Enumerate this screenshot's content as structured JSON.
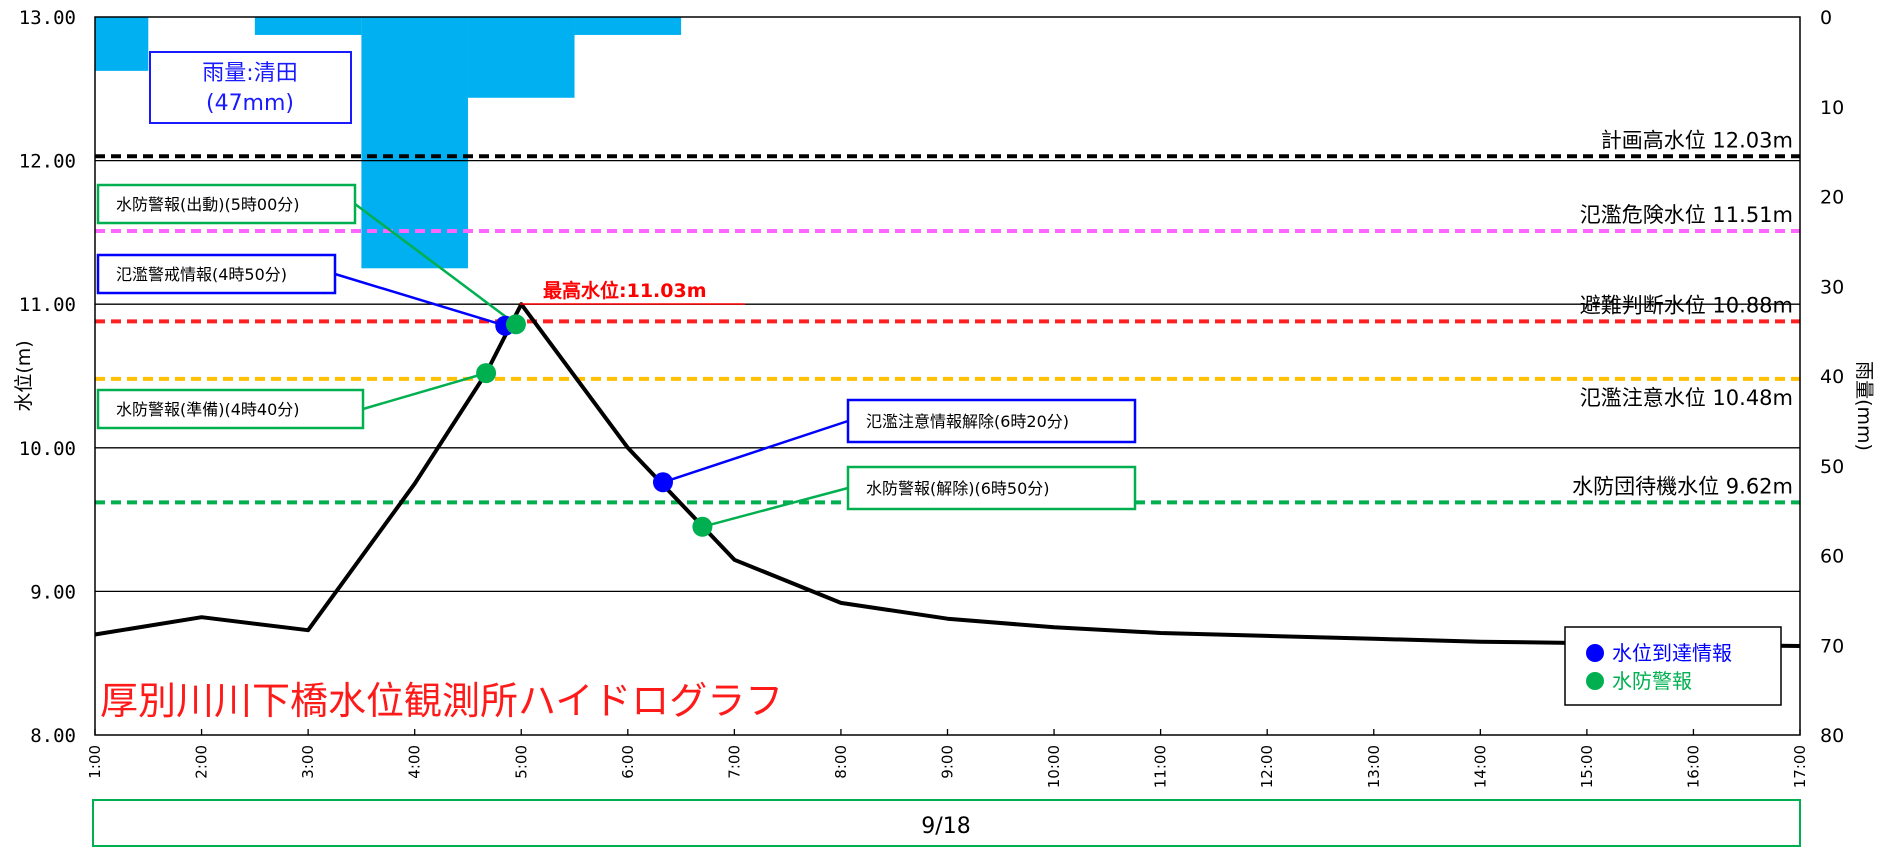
{
  "chart_data": {
    "type": "line",
    "title": "厚別川川下橋水位観測所ハイドログラフ",
    "ylabel_left": "水位(m)",
    "ylabel_right": "雨量(mm)",
    "ylim_left": [
      8.0,
      13.0
    ],
    "ylim_right": [
      0,
      80
    ],
    "yticks_left": [
      "8.00",
      "9.00",
      "10.00",
      "11.00",
      "12.00",
      "13.00"
    ],
    "yticks_right": [
      "0",
      "10",
      "20",
      "30",
      "40",
      "50",
      "60",
      "70",
      "80"
    ],
    "x_labels": [
      "1:00",
      "2:00",
      "3:00",
      "4:00",
      "5:00",
      "6:00",
      "7:00",
      "8:00",
      "9:00",
      "10:00",
      "11:00",
      "12:00",
      "13:00",
      "14:00",
      "15:00",
      "16:00",
      "17:00"
    ],
    "x_range": [
      1,
      17
    ],
    "date_label": "9/18",
    "water_level": [
      {
        "x": 1.0,
        "y": 8.7
      },
      {
        "x": 2.0,
        "y": 8.82
      },
      {
        "x": 3.0,
        "y": 8.73
      },
      {
        "x": 4.0,
        "y": 9.75
      },
      {
        "x": 4.67,
        "y": 10.52
      },
      {
        "x": 5.0,
        "y": 11.0
      },
      {
        "x": 6.0,
        "y": 10.0
      },
      {
        "x": 7.0,
        "y": 9.22
      },
      {
        "x": 8.0,
        "y": 8.92
      },
      {
        "x": 9.0,
        "y": 8.81
      },
      {
        "x": 10.0,
        "y": 8.75
      },
      {
        "x": 11.0,
        "y": 8.71
      },
      {
        "x": 12.0,
        "y": 8.69
      },
      {
        "x": 13.0,
        "y": 8.67
      },
      {
        "x": 14.0,
        "y": 8.65
      },
      {
        "x": 15.0,
        "y": 8.64
      },
      {
        "x": 16.0,
        "y": 8.63
      },
      {
        "x": 17.0,
        "y": 8.62
      }
    ],
    "rainfall": [
      {
        "x0": 1.0,
        "x1": 1.5,
        "mm": 6
      },
      {
        "x0": 2.5,
        "x1": 3.5,
        "mm": 2
      },
      {
        "x0": 3.5,
        "x1": 4.5,
        "mm": 28
      },
      {
        "x0": 4.5,
        "x1": 5.5,
        "mm": 9
      },
      {
        "x0": 5.5,
        "x1": 6.5,
        "mm": 2
      }
    ],
    "rain_label": [
      "雨量:清田",
      "(47mm)"
    ],
    "reference_levels": [
      {
        "label": "計画高水位 12.03m",
        "value": 12.03,
        "color": "#000000"
      },
      {
        "label": "氾濫危険水位 11.51m",
        "value": 11.51,
        "color": "#ff66ff"
      },
      {
        "label": "避難判断水位 10.88m",
        "value": 10.88,
        "color": "#ff2020"
      },
      {
        "label": "氾濫注意水位 10.48m",
        "value": 10.48,
        "color": "#ffc000"
      },
      {
        "label": "水防団待機水位 9.62m",
        "value": 9.62,
        "color": "#00b050"
      }
    ],
    "peak_label": "最高水位:11.03m",
    "peak": {
      "x": 5.0,
      "y": 11.03
    },
    "events": [
      {
        "label": "水防警報(出動)(5時00分)",
        "kind": "green",
        "x": 4.95,
        "y": 10.86
      },
      {
        "label": "氾濫警戒情報(4時50分)",
        "kind": "blue",
        "x": 4.85,
        "y": 10.85
      },
      {
        "label": "水防警報(準備)(4時40分)",
        "kind": "green",
        "x": 4.67,
        "y": 10.52
      },
      {
        "label": "氾濫注意情報解除(6時20分)",
        "kind": "blue",
        "x": 6.33,
        "y": 9.76
      },
      {
        "label": "水防警報(解除)(6時50分)",
        "kind": "green",
        "x": 6.7,
        "y": 9.45
      }
    ],
    "legend": [
      {
        "label": "水位到達情報",
        "color": "#0000ff"
      },
      {
        "label": "水防警報",
        "color": "#00b050"
      }
    ],
    "colors": {
      "rain": "#00b0f0",
      "line": "#000000",
      "blue": "#0000ff",
      "green": "#00b050"
    }
  }
}
